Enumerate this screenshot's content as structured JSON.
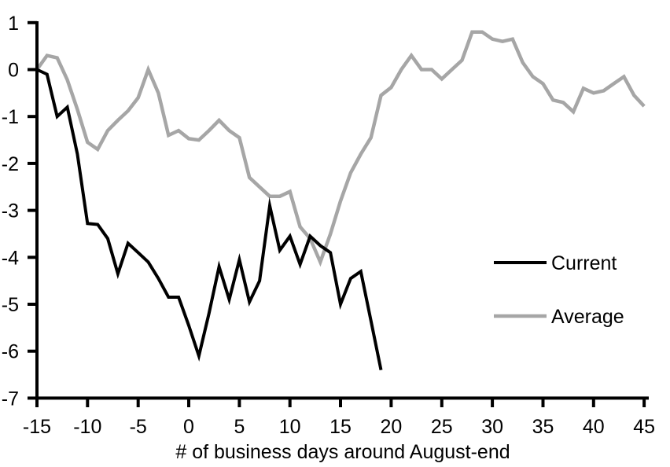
{
  "chart_data": {
    "type": "line",
    "title": "",
    "xlabel": "# of business days around August-end",
    "ylabel": "",
    "xlim": [
      -15,
      45
    ],
    "ylim": [
      -7,
      1
    ],
    "xticks": [
      -15,
      -10,
      -5,
      0,
      5,
      10,
      15,
      20,
      25,
      30,
      35,
      40,
      45
    ],
    "yticks": [
      1,
      0,
      -1,
      -2,
      -3,
      -4,
      -5,
      -6,
      -7
    ],
    "grid": false,
    "background_color": "#ffffff",
    "axis_color": "#000000",
    "legend_position": "right-middle",
    "series": [
      {
        "name": "Current",
        "color": "#000000",
        "x": [
          -15,
          -14,
          -13,
          -12,
          -11,
          -10,
          -9,
          -8,
          -7,
          -6,
          -5,
          -4,
          -3,
          -2,
          -1,
          0,
          1,
          2,
          3,
          4,
          5,
          6,
          7,
          8,
          9,
          10,
          11,
          12,
          13,
          14,
          15,
          16,
          17,
          18,
          19
        ],
        "values": [
          0,
          -0.1,
          -1.0,
          -0.8,
          -1.8,
          -3.28,
          -3.3,
          -3.6,
          -4.35,
          -3.7,
          -3.9,
          -4.1,
          -4.45,
          -4.85,
          -4.85,
          -5.45,
          -6.1,
          -5.2,
          -4.2,
          -4.9,
          -4.05,
          -4.95,
          -4.5,
          -2.9,
          -3.85,
          -3.55,
          -4.15,
          -3.55,
          -3.75,
          -3.9,
          -5.0,
          -4.45,
          -4.3,
          -5.35,
          -6.4
        ]
      },
      {
        "name": "Average",
        "color": "#a6a6a6",
        "x": [
          -15,
          -14,
          -13,
          -12,
          -11,
          -10,
          -9,
          -8,
          -7,
          -6,
          -5,
          -4,
          -3,
          -2,
          -1,
          0,
          1,
          2,
          3,
          4,
          5,
          6,
          7,
          8,
          9,
          10,
          11,
          12,
          13,
          14,
          15,
          16,
          17,
          18,
          19,
          20,
          21,
          22,
          23,
          24,
          25,
          26,
          27,
          28,
          29,
          30,
          31,
          32,
          33,
          34,
          35,
          36,
          37,
          38,
          39,
          40,
          41,
          42,
          43,
          44,
          45
        ],
        "values": [
          0,
          0.3,
          0.25,
          -0.22,
          -0.85,
          -1.55,
          -1.7,
          -1.3,
          -1.08,
          -0.88,
          -0.6,
          0,
          -0.5,
          -1.4,
          -1.3,
          -1.47,
          -1.5,
          -1.3,
          -1.08,
          -1.3,
          -1.45,
          -2.3,
          -2.5,
          -2.7,
          -2.7,
          -2.6,
          -3.35,
          -3.6,
          -4.1,
          -3.5,
          -2.8,
          -2.2,
          -1.8,
          -1.45,
          -0.55,
          -0.38,
          0,
          0.3,
          0,
          0,
          -0.2,
          0,
          0.2,
          0.8,
          0.8,
          0.65,
          0.6,
          0.65,
          0.15,
          -0.15,
          -0.3,
          -0.65,
          -0.7,
          -0.9,
          -0.4,
          -0.5,
          -0.45,
          -0.3,
          -0.15,
          -0.55,
          -0.78
        ]
      }
    ]
  }
}
